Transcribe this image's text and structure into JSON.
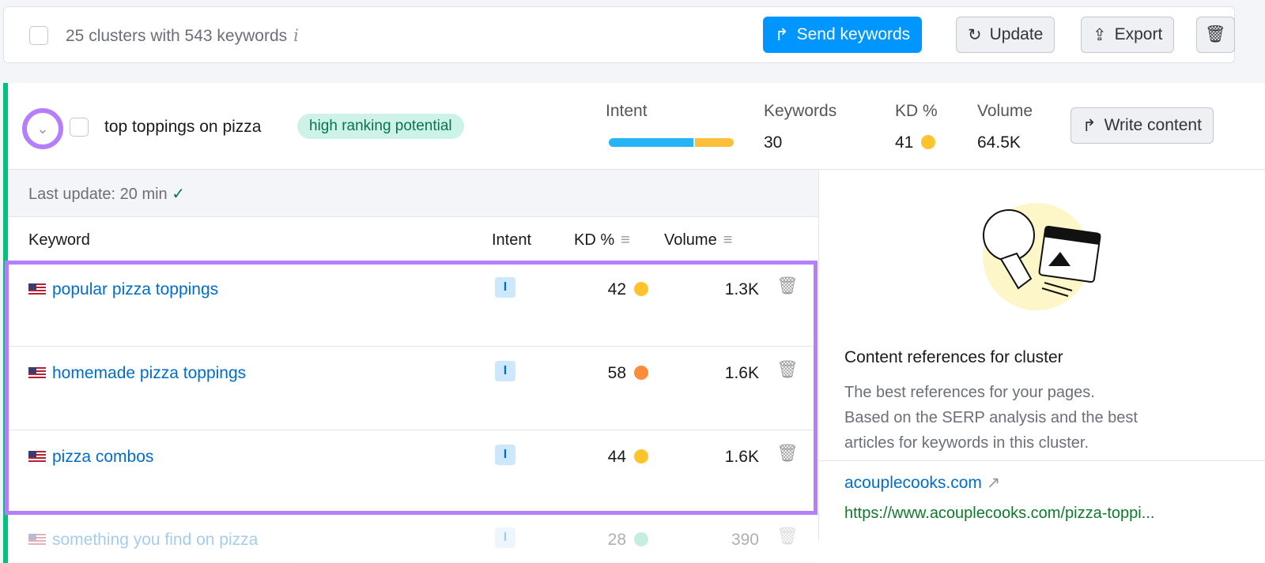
{
  "toolbar": {
    "summary": "25 clusters with 543 keywords",
    "info_icon": "i",
    "send": "Send keywords",
    "update": "Update",
    "export": "Export"
  },
  "cluster": {
    "title": "top toppings on pizza",
    "badge": "high ranking potential",
    "intent_label": "Intent",
    "keywords_label": "Keywords",
    "keywords": "30",
    "kd_label": "KD %",
    "kd": "41",
    "volume_label": "Volume",
    "volume": "64.5K",
    "write": "Write content",
    "last_update": "Last update: 20 min",
    "intent_split": {
      "informational": 0.68,
      "commercial": 0.32
    }
  },
  "table": {
    "headers": {
      "keyword": "Keyword",
      "intent": "Intent",
      "kd": "KD %",
      "volume": "Volume"
    },
    "rows": [
      {
        "keyword": "popular pizza toppings",
        "intent": "I",
        "kd": "42",
        "kd_color": "#ffc32e",
        "volume": "1.3K"
      },
      {
        "keyword": "homemade pizza toppings",
        "intent": "I",
        "kd": "58",
        "kd_color": "#ff8c3b",
        "volume": "1.6K"
      },
      {
        "keyword": "pizza combos",
        "intent": "I",
        "kd": "44",
        "kd_color": "#ffc32e",
        "volume": "1.6K"
      },
      {
        "keyword": "something you find on pizza",
        "intent": "I",
        "kd": "28",
        "kd_color": "#5fd0a9",
        "volume": "390"
      }
    ]
  },
  "panel": {
    "title": "Content references for cluster",
    "desc1": "The best references for your pages.",
    "desc2": "Based on the SERP analysis and the best",
    "desc3": "articles for keywords in this cluster.",
    "domain": "acouplecooks.com",
    "url": "https://www.acouplecooks.com/pizza-toppi..."
  },
  "colors": {
    "accent": "#0096ff",
    "highlight": "#b57ffb",
    "cluster_border": "#00c27a",
    "intent_info": "#25b4f6",
    "intent_comm": "#fcbf3b"
  }
}
